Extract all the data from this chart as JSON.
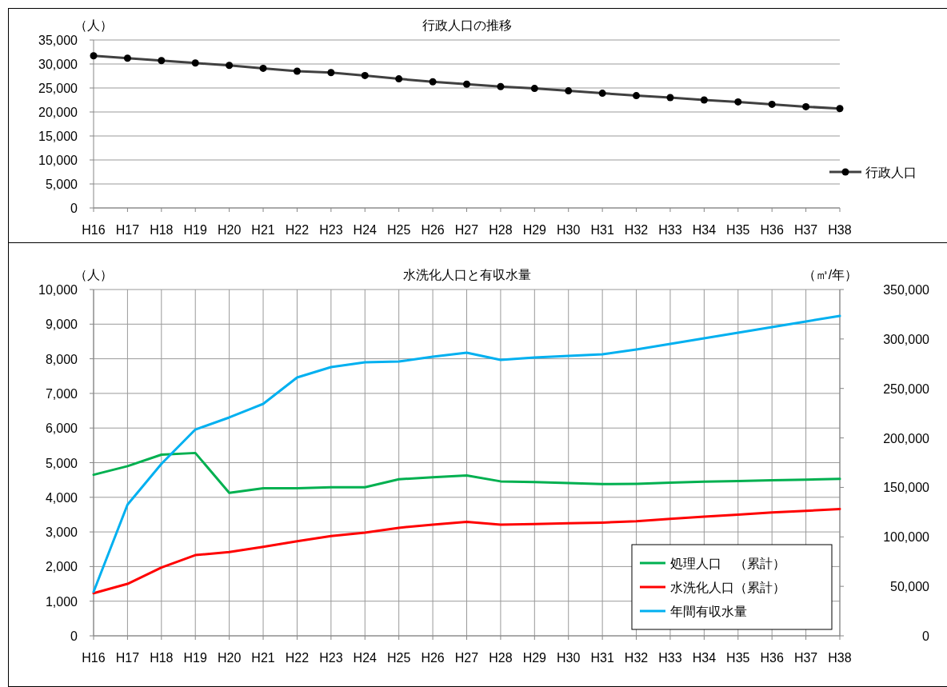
{
  "chart_data": [
    {
      "type": "line",
      "title": "行政人口の推移",
      "ylabel": "（人）",
      "categories": [
        "H16",
        "H17",
        "H18",
        "H19",
        "H20",
        "H21",
        "H22",
        "H23",
        "H24",
        "H25",
        "H26",
        "H27",
        "H28",
        "H29",
        "H30",
        "H31",
        "H32",
        "H33",
        "H34",
        "H35",
        "H36",
        "H37",
        "H38"
      ],
      "series": [
        {
          "name": "行政人口",
          "color": "#404040",
          "values": [
            31700,
            31200,
            30700,
            30200,
            29700,
            29100,
            28500,
            28200,
            27600,
            26900,
            26300,
            25800,
            25300,
            24900,
            24400,
            23900,
            23400,
            23000,
            22500,
            22100,
            21600,
            21100,
            20700
          ]
        }
      ],
      "ylim": [
        0,
        35000
      ],
      "yticks": [
        {
          "value": 0,
          "label": "0"
        },
        {
          "value": 5000,
          "label": "5,000"
        },
        {
          "value": 10000,
          "label": "10,000"
        },
        {
          "value": 15000,
          "label": "15,000"
        },
        {
          "value": 20000,
          "label": "20,000"
        },
        {
          "value": 25000,
          "label": "25,000"
        },
        {
          "value": 30000,
          "label": "30,000"
        },
        {
          "value": 35000,
          "label": "35,000"
        }
      ],
      "grid": "y",
      "legend": "right",
      "marker": "circle"
    },
    {
      "type": "line",
      "title": "水洗化人口と有収水量",
      "ylabel": "（人）",
      "y2label": "（㎥/年）",
      "categories": [
        "H16",
        "H17",
        "H18",
        "H19",
        "H20",
        "H21",
        "H22",
        "H23",
        "H24",
        "H25",
        "H26",
        "H27",
        "H28",
        "H29",
        "H30",
        "H31",
        "H32",
        "H33",
        "H34",
        "H35",
        "H36",
        "H37",
        "H38"
      ],
      "series": [
        {
          "name": "処理人口　（累計）",
          "color": "#00b050",
          "values": [
            4650,
            4900,
            5230,
            5280,
            4130,
            4260,
            4260,
            4290,
            4290,
            4520,
            4580,
            4630,
            4460,
            4440,
            4410,
            4380,
            4390,
            4420,
            4450,
            4470,
            4490,
            4510,
            4530
          ]
        },
        {
          "name": "水洗化人口（累計）",
          "color": "#ff0000",
          "values": [
            1230,
            1500,
            1970,
            2330,
            2420,
            2570,
            2730,
            2880,
            2980,
            3120,
            3210,
            3290,
            3210,
            3230,
            3250,
            3270,
            3310,
            3380,
            3440,
            3500,
            3560,
            3610,
            3660
          ]
        },
        {
          "name": "年間有収水量",
          "color": "#00b0f0",
          "axis": "y2",
          "values": [
            44500,
            132600,
            173800,
            208500,
            220700,
            234400,
            261100,
            271600,
            276400,
            277200,
            282100,
            286100,
            278900,
            281300,
            282900,
            284500,
            289400,
            295000,
            300700,
            306300,
            312000,
            317700,
            323300
          ]
        }
      ],
      "ylim": [
        0,
        10000
      ],
      "yticks": [
        {
          "value": 0,
          "label": "0"
        },
        {
          "value": 1000,
          "label": "1,000"
        },
        {
          "value": 2000,
          "label": "2,000"
        },
        {
          "value": 3000,
          "label": "3,000"
        },
        {
          "value": 4000,
          "label": "4,000"
        },
        {
          "value": 5000,
          "label": "5,000"
        },
        {
          "value": 6000,
          "label": "6,000"
        },
        {
          "value": 7000,
          "label": "7,000"
        },
        {
          "value": 8000,
          "label": "8,000"
        },
        {
          "value": 9000,
          "label": "9,000"
        },
        {
          "value": 10000,
          "label": "10,000"
        }
      ],
      "y2lim": [
        0,
        350000
      ],
      "y2ticks": [
        {
          "value": 0,
          "label": "0"
        },
        {
          "value": 50000,
          "label": "50,000"
        },
        {
          "value": 100000,
          "label": "100,000"
        },
        {
          "value": 150000,
          "label": "150,000"
        },
        {
          "value": 200000,
          "label": "200,000"
        },
        {
          "value": 250000,
          "label": "250,000"
        },
        {
          "value": 300000,
          "label": "300,000"
        },
        {
          "value": 350000,
          "label": "350,000"
        }
      ],
      "grid": true,
      "legend": "bottom right"
    }
  ]
}
